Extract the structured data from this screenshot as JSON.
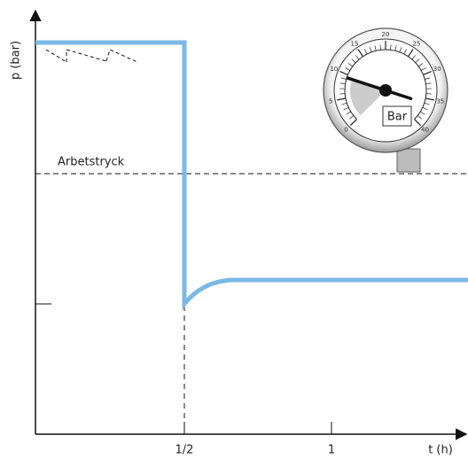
{
  "axes": {
    "y_label": "p (bar)",
    "x_label": "t (h)",
    "x_tick_labels": [
      "1/2",
      "1"
    ]
  },
  "annotation": "Arbetstryck",
  "gauge": {
    "unit": "Bar",
    "scale_labels": [
      "0",
      "5",
      "10",
      "15",
      "20",
      "25",
      "30",
      "35",
      "40"
    ]
  }
}
